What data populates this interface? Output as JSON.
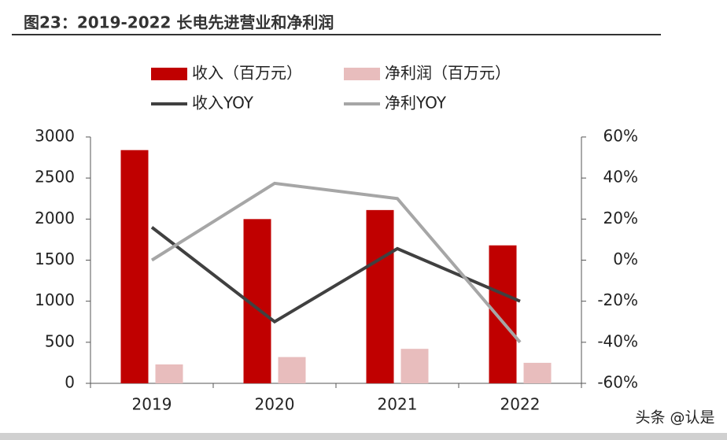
{
  "chart_data": {
    "type": "bar",
    "title": "图23：2019-2022 长电先进营业和净利润",
    "categories": [
      "2019",
      "2020",
      "2021",
      "2022"
    ],
    "series": [
      {
        "name": "收入（百万元）",
        "type": "bar",
        "color": "#c00000",
        "values": [
          2840,
          2000,
          2110,
          1680
        ]
      },
      {
        "name": "净利润（百万元）",
        "type": "bar",
        "color": "#e8bdbd",
        "values": [
          230,
          320,
          420,
          250
        ]
      },
      {
        "name": "收入YOY",
        "type": "line",
        "axis": "y2",
        "color": "#404040",
        "values": [
          16,
          -30,
          5.6,
          -20
        ]
      },
      {
        "name": "净利YOY",
        "type": "line",
        "axis": "y2",
        "color": "#a6a6a6",
        "values": [
          0,
          37.4,
          30,
          -40
        ]
      }
    ],
    "ylim": [
      0,
      3000
    ],
    "yticks": [
      0,
      500,
      1000,
      1500,
      2000,
      2500,
      3000
    ],
    "y2lim": [
      -60,
      60
    ],
    "y2ticks": [
      {
        "value": -60,
        "label": "-60%"
      },
      {
        "value": -40,
        "label": "-40%"
      },
      {
        "value": -20,
        "label": "-20%"
      },
      {
        "value": 0,
        "label": "0%"
      },
      {
        "value": 20,
        "label": "20%"
      },
      {
        "value": 40,
        "label": "40%"
      },
      {
        "value": 60,
        "label": "60%"
      }
    ],
    "grid": false
  },
  "watermark": "头条 @认是"
}
